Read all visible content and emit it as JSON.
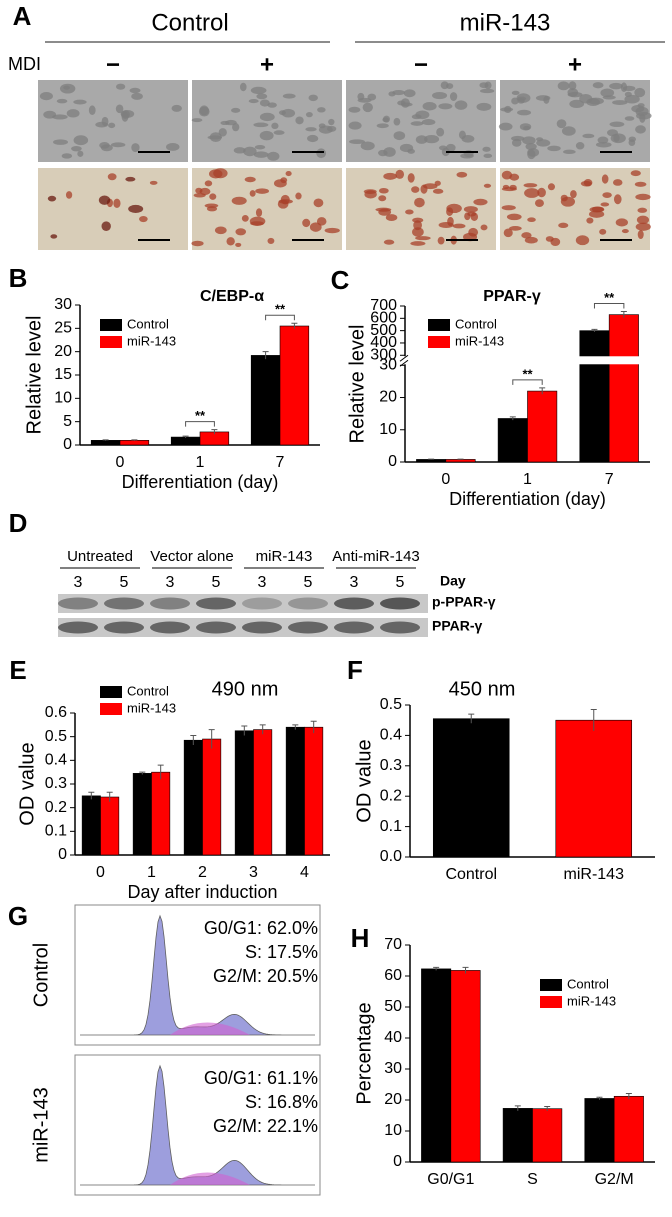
{
  "panel_labels": [
    "A",
    "B",
    "C",
    "D",
    "E",
    "F",
    "G",
    "H"
  ],
  "panel_a": {
    "title_left": "Control",
    "title_right": "miR-143",
    "row_label": "MDI",
    "treatments": [
      "−",
      "+",
      "−",
      "+"
    ]
  },
  "panel_d": {
    "groups": [
      "Untreated",
      "Vector alone",
      "miR-143",
      "Anti-miR-143"
    ],
    "days": [
      "3",
      "5",
      "3",
      "5",
      "3",
      "5",
      "3",
      "5"
    ],
    "day_label": "Day",
    "bands": [
      "p-PPAR-γ",
      "PPAR-γ"
    ]
  },
  "panel_g": {
    "samples": [
      {
        "name": "Control",
        "stats": [
          "G0/G1: 62.0%",
          "S: 17.5%",
          "G2/M: 20.5%"
        ]
      },
      {
        "name": "miR-143",
        "stats": [
          "G0/G1: 61.1%",
          "S: 16.8%",
          "G2/M: 22.1%"
        ]
      }
    ]
  },
  "chart_data": [
    {
      "type": "bar",
      "title": "C/EBP-α",
      "y_label": "Relative level",
      "x_label": "Differentiation (day)",
      "categories": [
        "0",
        "1",
        "7"
      ],
      "series": [
        {
          "name": "Control",
          "color": "#000000",
          "values": [
            1,
            1.7,
            19.2
          ],
          "errors": [
            0.1,
            0.2,
            0.8
          ]
        },
        {
          "name": "miR-143",
          "color": "#ff0000",
          "values": [
            1,
            2.8,
            25.5
          ],
          "errors": [
            0.1,
            0.5,
            0.6
          ]
        }
      ],
      "annotations": [
        {
          "label": "**",
          "category": "1"
        },
        {
          "label": "**",
          "category": "7"
        }
      ],
      "ylim": [
        0,
        30
      ],
      "yticks": [
        0,
        5,
        10,
        15,
        20,
        25,
        30
      ]
    },
    {
      "type": "bar",
      "title": "PPAR-γ",
      "y_label": "Relative level",
      "x_label": "Differentiation (day)",
      "categories": [
        "0",
        "1",
        "7"
      ],
      "series": [
        {
          "name": "Control",
          "color": "#000000",
          "values": [
            0.8,
            13.5,
            500
          ],
          "errors": [
            0.1,
            0.5,
            10
          ]
        },
        {
          "name": "miR-143",
          "color": "#ff0000",
          "values": [
            0.8,
            22,
            630
          ],
          "errors": [
            0.1,
            1,
            25
          ]
        }
      ],
      "annotations": [
        {
          "label": "**",
          "category": "1"
        },
        {
          "label": "**",
          "category": "7"
        }
      ],
      "ylim": [
        0,
        700
      ],
      "ybreak": [
        30,
        300
      ],
      "yticks": [
        0,
        10,
        20,
        30,
        300,
        400,
        500,
        600,
        700
      ]
    },
    {
      "type": "bar",
      "title": "490 nm",
      "y_label": "OD value",
      "x_label": "Day after induction",
      "categories": [
        "0",
        "1",
        "2",
        "3",
        "4"
      ],
      "series": [
        {
          "name": "Control",
          "color": "#000000",
          "values": [
            0.25,
            0.345,
            0.485,
            0.525,
            0.54
          ],
          "errors": [
            0.015,
            0.005,
            0.02,
            0.02,
            0.01
          ]
        },
        {
          "name": "miR-143",
          "color": "#ff0000",
          "values": [
            0.245,
            0.35,
            0.49,
            0.53,
            0.54
          ],
          "errors": [
            0.02,
            0.03,
            0.04,
            0.02,
            0.025
          ]
        }
      ],
      "ylim": [
        0,
        0.6
      ],
      "yticks": [
        0,
        0.1,
        0.2,
        0.3,
        0.4,
        0.5,
        0.6
      ]
    },
    {
      "type": "bar",
      "title": "450 nm",
      "y_label": "OD value",
      "categories": [
        "Control",
        "miR-143"
      ],
      "values": [
        0.455,
        0.45
      ],
      "errors": [
        0.015,
        0.035
      ],
      "colors": [
        "#000000",
        "#ff0000"
      ],
      "ylim": [
        0,
        0.5
      ],
      "yticks": [
        {
          "value": 0,
          "label": "0.0"
        },
        0.1,
        0.2,
        0.3,
        0.4,
        0.5
      ]
    },
    {
      "type": "bar",
      "y_label": "Percentage",
      "categories": [
        "G0/G1",
        "S",
        "G2/M"
      ],
      "series": [
        {
          "name": "Control",
          "color": "#000000",
          "values": [
            62.3,
            17.3,
            20.5
          ],
          "errors": [
            0.5,
            0.8,
            0.4
          ]
        },
        {
          "name": "miR-143",
          "color": "#ff0000",
          "values": [
            61.8,
            17.2,
            21.2
          ],
          "errors": [
            1,
            0.7,
            0.9
          ]
        }
      ],
      "ylim": [
        0,
        70
      ],
      "yticks": [
        0,
        10,
        20,
        30,
        40,
        50,
        60,
        70
      ]
    }
  ]
}
